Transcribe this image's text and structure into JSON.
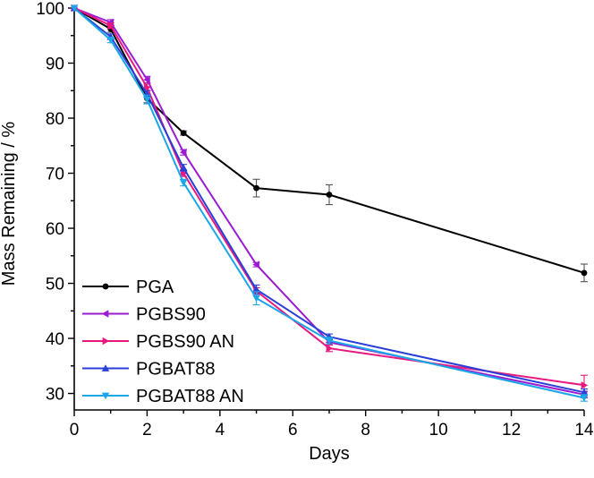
{
  "chart_data": {
    "type": "line",
    "title": "",
    "xlabel": "Days",
    "ylabel": "Mass Remaining / %",
    "xlim": [
      0,
      14
    ],
    "ylim": [
      27,
      100
    ],
    "xticks": [
      0,
      2,
      4,
      6,
      8,
      10,
      12,
      14
    ],
    "yticks": [
      30,
      40,
      50,
      60,
      70,
      80,
      90,
      100
    ],
    "legend_position": "bottom-left",
    "series": [
      {
        "name": "PGA",
        "color": "#000000",
        "marker": "circle",
        "x": [
          0,
          1,
          2,
          3,
          5,
          7,
          14
        ],
        "values": [
          100,
          96.2,
          83.6,
          77.3,
          67.3,
          66.1,
          51.9
        ],
        "error": [
          0,
          0.6,
          0.8,
          0.4,
          1.6,
          1.8,
          1.6
        ]
      },
      {
        "name": "PGBS90",
        "color": "#9b1bd1",
        "marker": "triangle-left",
        "x": [
          0,
          1,
          2,
          3,
          5,
          7,
          14
        ],
        "values": [
          100,
          97.4,
          87,
          73.8,
          53.4,
          39.3,
          29.8
        ],
        "error": [
          0,
          0.5,
          0.6,
          0.5,
          0.4,
          0.5,
          0.6
        ]
      },
      {
        "name": "PGBS90 AN",
        "color": "#e8197e",
        "marker": "triangle-right",
        "x": [
          0,
          1,
          2,
          3,
          5,
          7,
          14
        ],
        "values": [
          100,
          96.8,
          85.6,
          70,
          48.6,
          38.2,
          31.5
        ],
        "error": [
          0,
          0.5,
          0.6,
          0.6,
          0.6,
          0.6,
          1.8
        ]
      },
      {
        "name": "PGBAT88",
        "color": "#2a3fd8",
        "marker": "triangle-up",
        "x": [
          0,
          1,
          2,
          3,
          5,
          7,
          14
        ],
        "values": [
          100,
          94.8,
          84.4,
          71,
          48.9,
          40.3,
          30.2
        ],
        "error": [
          0,
          0.5,
          0.6,
          0.6,
          0.8,
          0.5,
          0.6
        ]
      },
      {
        "name": "PGBAT88 AN",
        "color": "#1aa6e8",
        "marker": "triangle-down",
        "x": [
          0,
          1,
          2,
          3,
          5,
          7,
          14
        ],
        "values": [
          100,
          94.2,
          83.4,
          68.3,
          47.3,
          39.6,
          29.2
        ],
        "error": [
          0,
          0.5,
          0.8,
          0.6,
          1.2,
          0.6,
          0.6
        ]
      }
    ]
  }
}
